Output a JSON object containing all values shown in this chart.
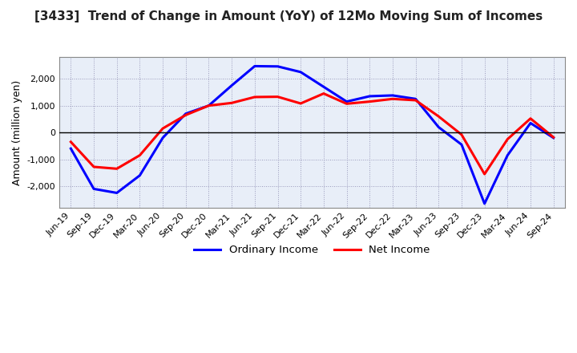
{
  "title": "[3433]  Trend of Change in Amount (YoY) of 12Mo Moving Sum of Incomes",
  "ylabel": "Amount (million yen)",
  "x_labels": [
    "Jun-19",
    "Sep-19",
    "Dec-19",
    "Mar-20",
    "Jun-20",
    "Sep-20",
    "Dec-20",
    "Mar-21",
    "Jun-21",
    "Sep-21",
    "Dec-21",
    "Mar-22",
    "Jun-22",
    "Sep-22",
    "Dec-22",
    "Mar-23",
    "Jun-23",
    "Sep-23",
    "Dec-23",
    "Mar-24",
    "Jun-24",
    "Sep-24"
  ],
  "ordinary_income": [
    -600,
    -2100,
    -2250,
    -1600,
    -200,
    700,
    1000,
    1750,
    2470,
    2460,
    2250,
    1700,
    1150,
    1350,
    1380,
    1250,
    200,
    -450,
    -2650,
    -850,
    350,
    -200
  ],
  "net_income": [
    -350,
    -1280,
    -1350,
    -850,
    150,
    650,
    1000,
    1100,
    1320,
    1330,
    1080,
    1450,
    1070,
    1150,
    1250,
    1200,
    600,
    -80,
    -1550,
    -250,
    520,
    -180
  ],
  "ordinary_color": "#0000ff",
  "net_color": "#ff0000",
  "line_width": 2.2,
  "ylim": [
    -2800,
    2800
  ],
  "yticks": [
    -2000,
    -1000,
    0,
    1000,
    2000
  ],
  "background_color": "#ffffff",
  "plot_bg_color": "#e8eef8",
  "grid_color": "#9999bb",
  "legend_labels": [
    "Ordinary Income",
    "Net Income"
  ]
}
